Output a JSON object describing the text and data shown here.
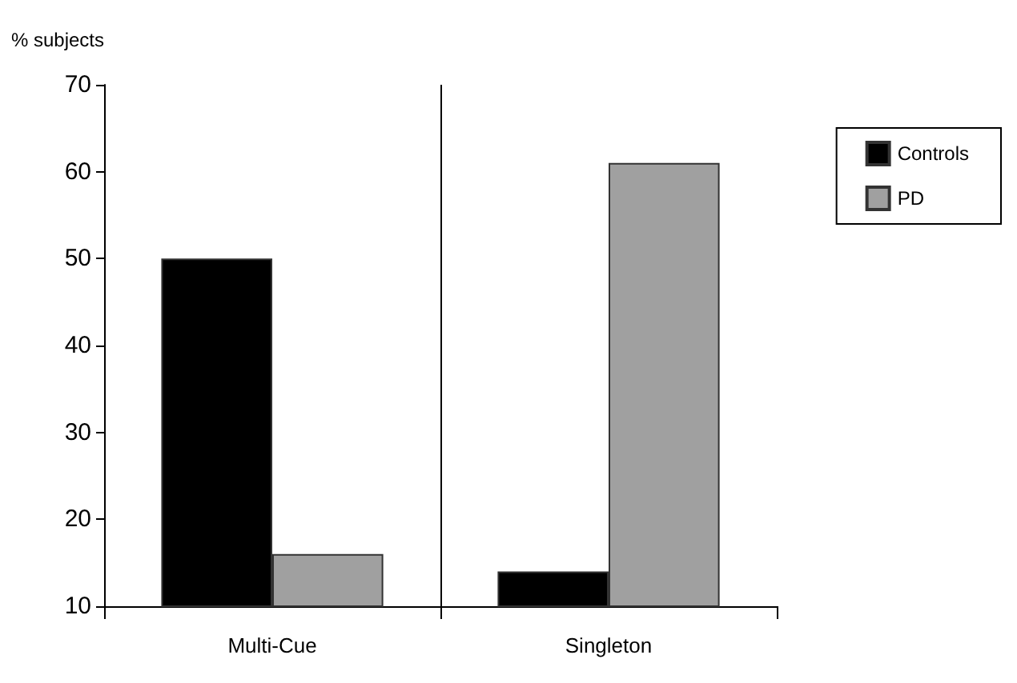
{
  "chart_data": {
    "type": "bar",
    "ylabel": "% subjects",
    "categories": [
      "Multi-Cue",
      "Singleton"
    ],
    "series": [
      {
        "name": "Controls",
        "color": "#000000",
        "values": [
          50,
          14
        ]
      },
      {
        "name": "PD",
        "color": "#a0a0a0",
        "values": [
          16,
          61
        ]
      }
    ],
    "ylim": [
      10,
      70
    ],
    "yticks": [
      10,
      20,
      30,
      40,
      50,
      60,
      70
    ],
    "grid": "x",
    "legend": "top right"
  }
}
